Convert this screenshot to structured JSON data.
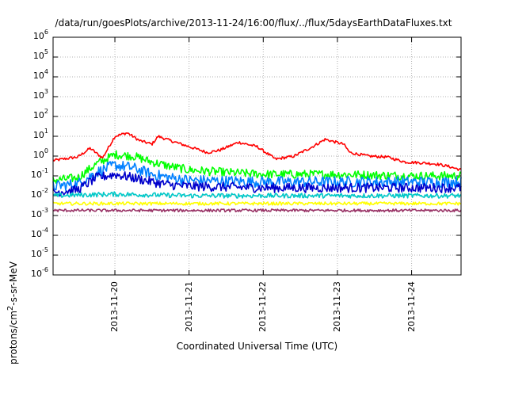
{
  "chart_data": {
    "type": "line",
    "title": "/data/run/goesPlots/archive/2013-11-24/16:00/flux/../flux/5daysEarthDataFluxes.txt",
    "xlabel": "Coordinated Universal Time (UTC)",
    "ylabel_parts": [
      "protons/cm",
      "2",
      "-s-sr-MeV"
    ],
    "x_scale": "date",
    "x_ticks": [
      "2013-11-20",
      "2013-11-21",
      "2013-11-22",
      "2013-11-23",
      "2013-11-24"
    ],
    "xlim": [
      "2013-11-19 04:00",
      "2013-11-24 16:00"
    ],
    "y_scale": "log",
    "ylim": [
      1e-06,
      1000000.0
    ],
    "y_ticks": [
      {
        "base": "10",
        "exp": "6"
      },
      {
        "base": "10",
        "exp": "5"
      },
      {
        "base": "10",
        "exp": "4"
      },
      {
        "base": "10",
        "exp": "3"
      },
      {
        "base": "10",
        "exp": "2"
      },
      {
        "base": "10",
        "exp": "1"
      },
      {
        "base": "10",
        "exp": "0"
      },
      {
        "base": "10",
        "exp": "-1"
      },
      {
        "base": "10",
        "exp": "-2"
      },
      {
        "base": "10",
        "exp": "-3"
      },
      {
        "base": "10",
        "exp": "-4"
      },
      {
        "base": "10",
        "exp": "-5"
      },
      {
        "base": "10",
        "exp": "-6"
      }
    ],
    "grid": true,
    "series": [
      {
        "color": "#ff0000",
        "x": [
          "2013-11-19 04:00",
          "2013-11-19 12:00",
          "2013-11-19 16:00",
          "2013-11-19 20:00",
          "2013-11-20 00:00",
          "2013-11-20 04:00",
          "2013-11-20 08:00",
          "2013-11-20 12:00",
          "2013-11-20 14:00",
          "2013-11-20 18:00",
          "2013-11-21 00:00",
          "2013-11-21 06:00",
          "2013-11-21 10:00",
          "2013-11-21 16:00",
          "2013-11-21 22:00",
          "2013-11-22 04:00",
          "2013-11-22 10:00",
          "2013-11-22 16:00",
          "2013-11-22 20:00",
          "2013-11-23 02:00",
          "2013-11-23 04:00",
          "2013-11-23 10:00",
          "2013-11-23 16:00",
          "2013-11-23 22:00",
          "2013-11-24 04:00",
          "2013-11-24 08:00",
          "2013-11-24 12:00",
          "2013-11-24 16:00"
        ],
        "y": [
          0.6,
          0.9,
          2.5,
          0.8,
          10,
          15,
          6,
          4,
          10,
          6,
          3,
          1.5,
          2,
          5,
          3,
          0.7,
          1.0,
          3,
          7,
          4,
          1.5,
          1.0,
          0.9,
          0.5,
          0.45,
          0.4,
          0.3,
          0.2
        ]
      },
      {
        "color": "#00ff00",
        "x": [
          "2013-11-19 04:00",
          "2013-11-19 12:00",
          "2013-11-19 18:00",
          "2013-11-20 00:00",
          "2013-11-20 06:00",
          "2013-11-20 12:00",
          "2013-11-20 18:00",
          "2013-11-21 00:00",
          "2013-11-21 12:00",
          "2013-11-22 00:00",
          "2013-11-23 00:00",
          "2013-11-24 00:00",
          "2013-11-24 16:00"
        ],
        "y": [
          0.06,
          0.08,
          0.4,
          1.2,
          1.0,
          0.5,
          0.3,
          0.2,
          0.15,
          0.12,
          0.12,
          0.1,
          0.1
        ]
      },
      {
        "color": "#0080ff",
        "x": [
          "2013-11-19 04:00",
          "2013-11-19 12:00",
          "2013-11-19 18:00",
          "2013-11-20 00:00",
          "2013-11-20 06:00",
          "2013-11-20 12:00",
          "2013-11-20 18:00",
          "2013-11-21 00:00",
          "2013-11-22 00:00",
          "2013-11-23 00:00",
          "2013-11-24 00:00",
          "2013-11-24 16:00"
        ],
        "y": [
          0.03,
          0.04,
          0.15,
          0.35,
          0.25,
          0.12,
          0.08,
          0.06,
          0.05,
          0.05,
          0.05,
          0.05
        ]
      },
      {
        "color": "#0000cc",
        "x": [
          "2013-11-19 04:00",
          "2013-11-19 12:00",
          "2013-11-19 18:00",
          "2013-11-20 00:00",
          "2013-11-20 06:00",
          "2013-11-20 12:00",
          "2013-11-20 18:00",
          "2013-11-21 00:00",
          "2013-11-22 00:00",
          "2013-11-23 00:00",
          "2013-11-24 00:00",
          "2013-11-24 16:00"
        ],
        "y": [
          0.015,
          0.02,
          0.08,
          0.12,
          0.08,
          0.05,
          0.035,
          0.03,
          0.025,
          0.025,
          0.025,
          0.025
        ]
      },
      {
        "color": "#00c8c8",
        "x": [
          "2013-11-19 04:00",
          "2013-11-20 00:00",
          "2013-11-21 00:00",
          "2013-11-22 00:00",
          "2013-11-23 00:00",
          "2013-11-24 00:00",
          "2013-11-24 16:00"
        ],
        "y": [
          0.01,
          0.012,
          0.01,
          0.01,
          0.01,
          0.01,
          0.01
        ]
      },
      {
        "color": "#ffff00",
        "x": [
          "2013-11-19 04:00",
          "2013-11-20 00:00",
          "2013-11-21 00:00",
          "2013-11-22 00:00",
          "2013-11-23 00:00",
          "2013-11-24 00:00",
          "2013-11-24 16:00"
        ],
        "y": [
          0.004,
          0.004,
          0.004,
          0.004,
          0.004,
          0.004,
          0.004
        ]
      },
      {
        "color": "#993366",
        "x": [
          "2013-11-19 04:00",
          "2013-11-20 00:00",
          "2013-11-21 00:00",
          "2013-11-22 00:00",
          "2013-11-23 00:00",
          "2013-11-24 00:00",
          "2013-11-24 16:00"
        ],
        "y": [
          0.0018,
          0.0018,
          0.0018,
          0.0018,
          0.0018,
          0.0018,
          0.0018
        ]
      }
    ]
  }
}
